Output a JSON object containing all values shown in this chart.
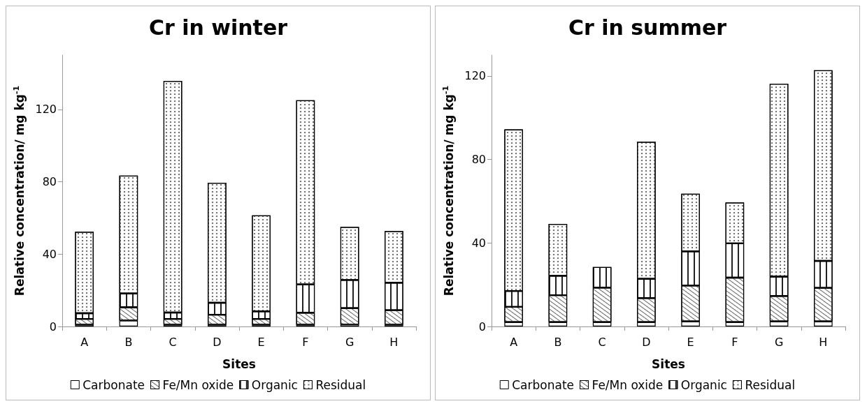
{
  "chart_data": [
    {
      "type": "bar",
      "title": "Cr in winter",
      "xlabel": "Sites",
      "ylabel": "Relative concentration/ mg kg$^{-1}$",
      "categories": [
        "A",
        "B",
        "C",
        "D",
        "E",
        "F",
        "G",
        "H"
      ],
      "stacked": true,
      "ylim": [
        0,
        150
      ],
      "yticks": [
        0,
        40,
        80,
        120
      ],
      "grid": false,
      "legend": "bottom",
      "series": [
        {
          "name": "Carbonate",
          "color": "#ffffff",
          "values": [
            1,
            3.3,
            1,
            1,
            1,
            1,
            1.1,
            1
          ]
        },
        {
          "name": "Fe/Mn oxide",
          "color": "#ffffff",
          "values": [
            3.2,
            7.3,
            3.2,
            5.5,
            3.2,
            6.6,
            9,
            8
          ]
        },
        {
          "name": "Organic",
          "color": "#ffffff",
          "values": [
            3.1,
            7.6,
            3.5,
            6.6,
            4.2,
            15.7,
            15.6,
            15.2
          ]
        },
        {
          "name": "Residual",
          "color": "#ffffff",
          "values": [
            45,
            65.2,
            128,
            66.3,
            53,
            101.7,
            29.3,
            28.5
          ]
        }
      ]
    },
    {
      "type": "bar",
      "title": "Cr in summer",
      "xlabel": "Sites",
      "ylabel": "Relative concentration/ mg kg$^{-1}$",
      "categories": [
        "A",
        "B",
        "C",
        "D",
        "E",
        "F",
        "G",
        "H"
      ],
      "stacked": true,
      "ylim": [
        0,
        130
      ],
      "yticks": [
        0,
        40,
        80,
        120
      ],
      "grid": false,
      "legend": "bottom",
      "series": [
        {
          "name": "Carbonate",
          "color": "#ffffff",
          "values": [
            2.1,
            2.1,
            2.1,
            2.1,
            2.4,
            2.1,
            2.4,
            2.4
          ]
        },
        {
          "name": "Fe/Mn oxide",
          "color": "#ffffff",
          "values": [
            7.3,
            12.9,
            16.5,
            11.5,
            17.2,
            21.3,
            12.2,
            16.1
          ]
        },
        {
          "name": "Organic",
          "color": "#ffffff",
          "values": [
            7.6,
            9.3,
            9.9,
            9.2,
            16.4,
            16.4,
            9.3,
            12.9
          ]
        },
        {
          "name": "Residual",
          "color": "#ffffff",
          "values": [
            77.4,
            24.8,
            null,
            65.7,
            27.6,
            19.6,
            92.4,
            91.3
          ]
        }
      ]
    }
  ]
}
